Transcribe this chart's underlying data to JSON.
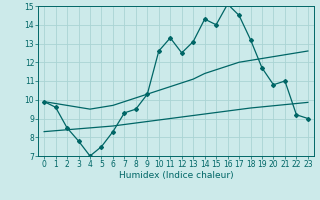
{
  "title": "",
  "xlabel": "Humidex (Indice chaleur)",
  "ylabel": "",
  "xlim": [
    -0.5,
    23.5
  ],
  "ylim": [
    7,
    15
  ],
  "xticks": [
    0,
    1,
    2,
    3,
    4,
    5,
    6,
    7,
    8,
    9,
    10,
    11,
    12,
    13,
    14,
    15,
    16,
    17,
    18,
    19,
    20,
    21,
    22,
    23
  ],
  "yticks": [
    7,
    8,
    9,
    10,
    11,
    12,
    13,
    14,
    15
  ],
  "bg_color": "#cceaea",
  "grid_color": "#aad4d4",
  "line_color": "#006666",
  "main_line": [
    9.9,
    9.6,
    8.5,
    7.8,
    7.0,
    7.5,
    8.3,
    9.3,
    9.5,
    10.3,
    12.6,
    13.3,
    12.5,
    13.1,
    14.3,
    14.0,
    15.1,
    14.5,
    13.2,
    11.7,
    10.8,
    11.0,
    9.2,
    9.0
  ],
  "upper_line": [
    9.9,
    9.8,
    9.7,
    9.6,
    9.5,
    9.6,
    9.7,
    9.9,
    10.1,
    10.3,
    10.5,
    10.7,
    10.9,
    11.1,
    11.4,
    11.6,
    11.8,
    12.0,
    12.1,
    12.2,
    12.3,
    12.4,
    12.5,
    12.6
  ],
  "lower_line": [
    8.3,
    8.35,
    8.4,
    8.45,
    8.5,
    8.55,
    8.6,
    8.68,
    8.76,
    8.84,
    8.92,
    9.0,
    9.08,
    9.16,
    9.24,
    9.32,
    9.4,
    9.48,
    9.56,
    9.62,
    9.68,
    9.74,
    9.8,
    9.86
  ],
  "xlabel_fontsize": 6.5,
  "tick_fontsize": 5.5,
  "linewidth": 0.9,
  "marker_size": 2.0
}
